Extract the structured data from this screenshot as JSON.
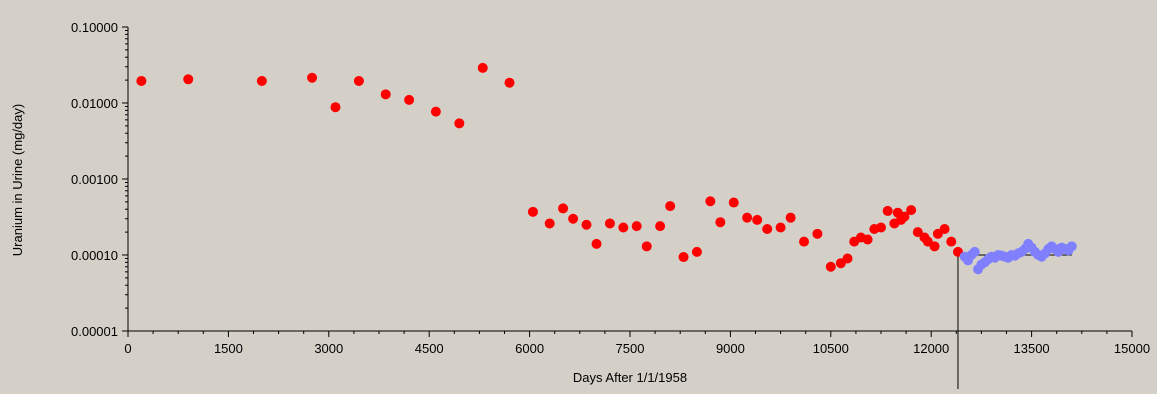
{
  "chart_data": {
    "type": "scatter",
    "xlabel": "Days After 1/1/1958",
    "ylabel": "Uranium in Urine (mg/day)",
    "xlim": [
      0,
      15000
    ],
    "ylim": [
      1e-05,
      0.1
    ],
    "yscale": "log",
    "xticks": [
      "0",
      "1500",
      "3000",
      "4500",
      "6000",
      "7500",
      "9000",
      "10500",
      "12000",
      "13500",
      "15000"
    ],
    "yticks": [
      "0.10000",
      "0.01000",
      "0.00100",
      "0.00010",
      "0.00001"
    ],
    "grid": false,
    "legend": "none",
    "reference_lines": {
      "vertical_x": 12400,
      "horizontal_y": 0.0001,
      "horizontal_x_range": [
        12400,
        14100
      ]
    },
    "series": [
      {
        "color": "#ff0000",
        "points": [
          [
            200,
            0.0195
          ],
          [
            900,
            0.0205
          ],
          [
            2000,
            0.0195
          ],
          [
            2750,
            0.0215
          ],
          [
            3100,
            0.0088
          ],
          [
            3450,
            0.0195
          ],
          [
            3850,
            0.013
          ],
          [
            4200,
            0.011
          ],
          [
            4600,
            0.0077
          ],
          [
            4950,
            0.0054
          ],
          [
            5300,
            0.029
          ],
          [
            5700,
            0.0185
          ],
          [
            6050,
            0.00037
          ],
          [
            6300,
            0.00026
          ],
          [
            6500,
            0.00041
          ],
          [
            6650,
            0.0003
          ],
          [
            6850,
            0.00025
          ],
          [
            7000,
            0.00014
          ],
          [
            7200,
            0.00026
          ],
          [
            7400,
            0.00023
          ],
          [
            7600,
            0.00024
          ],
          [
            7750,
            0.00013
          ],
          [
            7950,
            0.00024
          ],
          [
            8100,
            0.00044
          ],
          [
            8300,
            9.4e-05
          ],
          [
            8500,
            0.00011
          ],
          [
            8700,
            0.00051
          ],
          [
            8850,
            0.00027
          ],
          [
            9050,
            0.00049
          ],
          [
            9250,
            0.00031
          ],
          [
            9400,
            0.00029
          ],
          [
            9550,
            0.00022
          ],
          [
            9750,
            0.00023
          ],
          [
            9900,
            0.00031
          ],
          [
            10100,
            0.00015
          ],
          [
            10300,
            0.00019
          ],
          [
            10500,
            7e-05
          ],
          [
            10650,
            7.8e-05
          ],
          [
            10750,
            9e-05
          ],
          [
            10850,
            0.00015
          ],
          [
            10950,
            0.00017
          ],
          [
            11050,
            0.00016
          ],
          [
            11150,
            0.00022
          ],
          [
            11250,
            0.00023
          ],
          [
            11350,
            0.00038
          ],
          [
            11450,
            0.00026
          ],
          [
            11500,
            0.00036
          ],
          [
            11550,
            0.00029
          ],
          [
            11600,
            0.00032
          ],
          [
            11700,
            0.00039
          ],
          [
            11800,
            0.0002
          ],
          [
            11900,
            0.00017
          ],
          [
            11950,
            0.00015
          ],
          [
            12050,
            0.00013
          ],
          [
            12100,
            0.00019
          ],
          [
            12200,
            0.00022
          ],
          [
            12300,
            0.00015
          ],
          [
            12400,
            0.00011
          ]
        ]
      },
      {
        "color": "#8080ff",
        "points": [
          [
            12500,
            9.5e-05
          ],
          [
            12550,
            8.5e-05
          ],
          [
            12600,
            0.0001
          ],
          [
            12650,
            0.00011
          ],
          [
            12700,
            6.5e-05
          ],
          [
            12750,
            7.5e-05
          ],
          [
            12800,
            8e-05
          ],
          [
            12850,
            8.8e-05
          ],
          [
            12900,
            9.5e-05
          ],
          [
            12950,
            9.2e-05
          ],
          [
            13000,
            0.0001
          ],
          [
            13050,
            9.8e-05
          ],
          [
            13100,
            9.5e-05
          ],
          [
            13150,
            9.2e-05
          ],
          [
            13200,
            0.0001
          ],
          [
            13250,
            9.8e-05
          ],
          [
            13300,
            0.000105
          ],
          [
            13350,
            0.00011
          ],
          [
            13400,
            0.00012
          ],
          [
            13450,
            0.00014
          ],
          [
            13500,
            0.000125
          ],
          [
            13550,
            0.00011
          ],
          [
            13600,
            0.0001
          ],
          [
            13650,
            9.5e-05
          ],
          [
            13700,
            0.000105
          ],
          [
            13750,
            0.00012
          ],
          [
            13800,
            0.00013
          ],
          [
            13850,
            0.00012
          ],
          [
            13900,
            0.00011
          ],
          [
            13950,
            0.000125
          ],
          [
            14000,
            0.00012
          ],
          [
            14050,
            0.000115
          ],
          [
            14100,
            0.00013
          ]
        ]
      }
    ]
  }
}
